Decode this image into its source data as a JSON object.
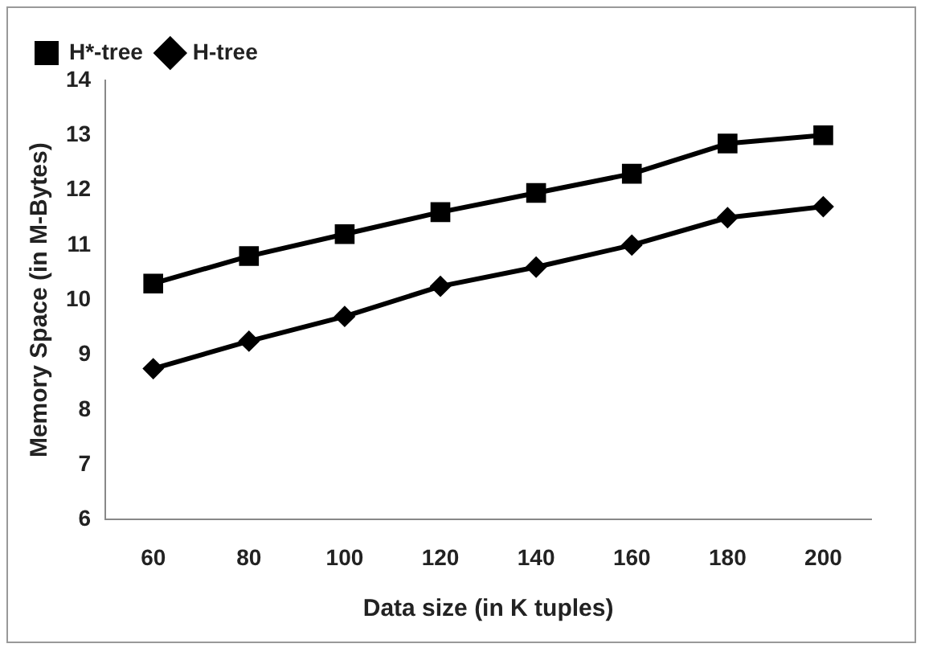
{
  "chart_data": {
    "type": "line",
    "xlabel": "Data size (in K tuples)",
    "ylabel": "Memory Space (in M-Bytes)",
    "categories": [
      "60",
      "80",
      "100",
      "120",
      "140",
      "160",
      "180",
      "200"
    ],
    "series": [
      {
        "name": "H*-tree",
        "color": "#000000",
        "marker": "square",
        "values": [
          10.3,
          10.8,
          11.2,
          11.6,
          11.95,
          12.3,
          12.85,
          13.0
        ]
      },
      {
        "name": "H-tree",
        "color": "#000000",
        "marker": "diamond",
        "values": [
          8.75,
          9.25,
          9.7,
          10.25,
          10.6,
          11.0,
          11.5,
          11.7
        ]
      }
    ],
    "ylim": [
      6,
      14
    ],
    "yticks": [
      6,
      7,
      8,
      9,
      10,
      11,
      12,
      13,
      14
    ],
    "grid": false,
    "legend": "top left"
  }
}
